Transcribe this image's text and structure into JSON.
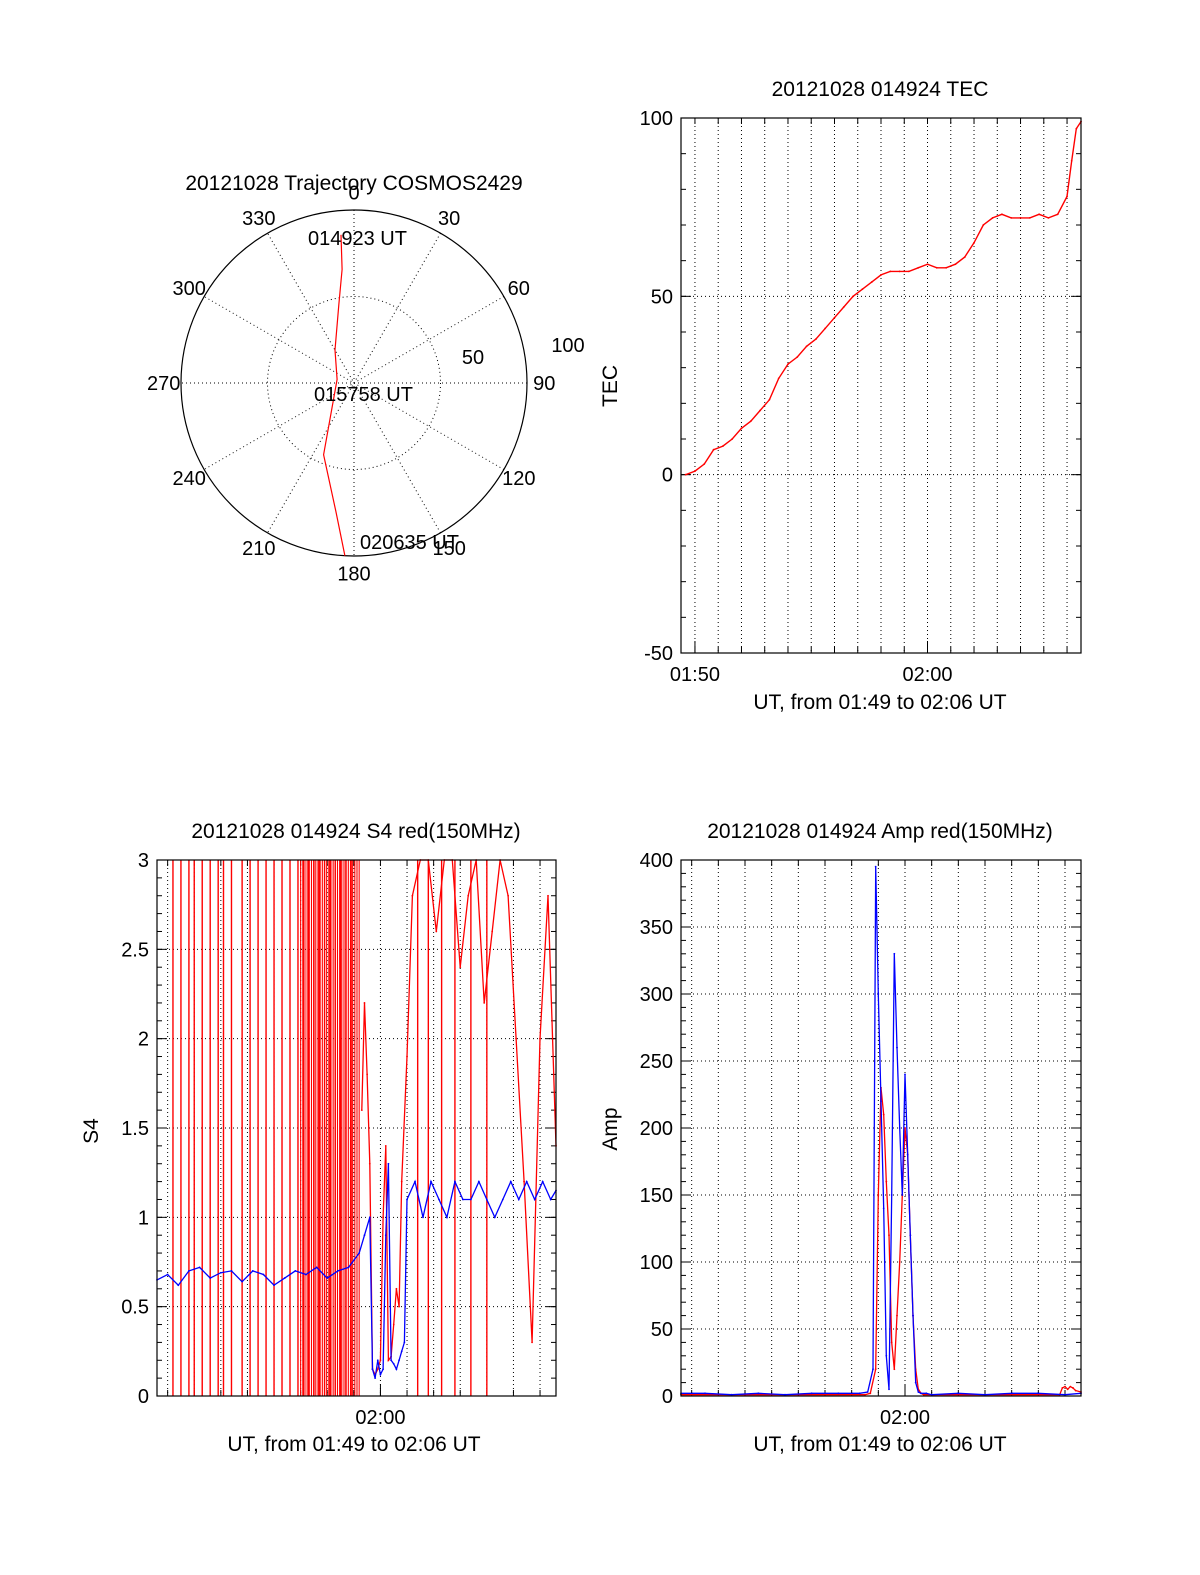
{
  "colors": {
    "red": "#ff0000",
    "blue": "#0000ff",
    "grid": "#000000"
  },
  "chart_data": [
    {
      "type": "polar",
      "title": "20121028 Trajectory COSMOS2429",
      "angle_labels": [
        "0",
        "30",
        "60",
        "90",
        "120",
        "150",
        "180",
        "210",
        "240",
        "270",
        "300",
        "330"
      ],
      "radial_labels": [
        "50",
        "100"
      ],
      "rlim": [
        0,
        100
      ],
      "trajectory": [
        {
          "azimuth": 355,
          "radius": 86
        },
        {
          "azimuth": 354,
          "radius": 66
        },
        {
          "azimuth": 349,
          "radius": 46
        },
        {
          "azimuth": 330,
          "radius": 22
        },
        {
          "azimuth": 282,
          "radius": 10
        },
        {
          "azimuth": 203,
          "radius": 45
        },
        {
          "azimuth": 188,
          "radius": 75
        },
        {
          "azimuth": 183,
          "radius": 100
        }
      ],
      "annotations": [
        "014923 UT",
        "015758 UT",
        "020635 UT"
      ],
      "series_color": "red"
    },
    {
      "type": "line",
      "title": "20121028 014924 TEC",
      "xlabel": "UT, from 01:49 to 02:06 UT",
      "ylabel": "TEC",
      "xlim": [
        109.4,
        126.6
      ],
      "ylim": [
        -50,
        100
      ],
      "x_tick_labels": [
        {
          "x": 110,
          "label": "01:50"
        },
        {
          "x": 120,
          "label": "02:00"
        }
      ],
      "y_ticks": [
        -50,
        0,
        50,
        100
      ],
      "series": [
        {
          "color": "red",
          "x": [
            109.6,
            110.0,
            110.4,
            110.8,
            111.2,
            111.6,
            112.0,
            112.4,
            112.8,
            113.2,
            113.6,
            114.0,
            114.4,
            114.8,
            115.2,
            115.6,
            116.0,
            116.4,
            116.8,
            117.2,
            117.6,
            118.0,
            118.4,
            118.8,
            119.2,
            119.6,
            120.0,
            120.4,
            120.8,
            121.2,
            121.6,
            122.0,
            122.4,
            122.8,
            123.2,
            123.6,
            124.0,
            124.4,
            124.8,
            125.2,
            125.6,
            126.0,
            126.2,
            126.4,
            126.6
          ],
          "y": [
            0,
            1,
            3,
            7,
            8,
            10,
            13,
            15,
            18,
            21,
            27,
            31,
            33,
            36,
            38,
            41,
            44,
            47,
            50,
            52,
            54,
            56,
            57,
            57,
            57,
            58,
            59,
            58,
            58,
            59,
            61,
            65,
            70,
            72,
            73,
            72,
            72,
            72,
            73,
            72,
            73,
            78,
            88,
            97,
            99
          ]
        }
      ]
    },
    {
      "type": "line",
      "title": "20121028 014924 S4 red(150MHz)",
      "xlabel": "UT, from 01:49 to 02:06 UT",
      "ylabel": "S4",
      "xlim": [
        111.6,
        126.6
      ],
      "ylim": [
        0,
        3
      ],
      "x_tick_labels": [
        {
          "x": 120,
          "label": "02:00"
        }
      ],
      "y_ticks": [
        0,
        0.5,
        1,
        1.5,
        2,
        2.5,
        3
      ],
      "y_tick_labels": [
        "0",
        "0.5",
        "1",
        "1.5",
        "2",
        "2.5",
        "3"
      ],
      "red_spikes_x": [
        112.2,
        112.5,
        112.8,
        113.0,
        113.3,
        113.6,
        113.9,
        114.1,
        114.4,
        114.8,
        115.1,
        115.4,
        115.7,
        116.0,
        116.3,
        116.6,
        116.9,
        117.1,
        117.3,
        117.5,
        117.7,
        117.9,
        118.1,
        118.3,
        118.5,
        118.7,
        118.9,
        121.4,
        121.8,
        122.3,
        122.8,
        123.4,
        124.0
      ],
      "red_dense_range": [
        117.0,
        119.2
      ],
      "series": [
        {
          "color": "red",
          "x": [
            119.3,
            119.4,
            119.5,
            119.6,
            119.7,
            119.8,
            119.9,
            120.0,
            120.1,
            120.2,
            120.3,
            120.4,
            120.5,
            120.6,
            120.7,
            120.8,
            121.0,
            121.2,
            121.5,
            121.8,
            122.1,
            122.4,
            122.7,
            123.0,
            123.3,
            123.6,
            123.9,
            124.2,
            124.5,
            124.8,
            125.1,
            125.4,
            125.7,
            126.0,
            126.3,
            126.6
          ],
          "y": [
            1.6,
            2.2,
            1.8,
            1.3,
            0.15,
            0.12,
            0.15,
            0.2,
            1.0,
            1.4,
            0.2,
            0.22,
            0.4,
            0.6,
            0.5,
            1.2,
            1.9,
            2.8,
            3.0,
            3.0,
            2.6,
            3.0,
            3.0,
            2.4,
            2.8,
            3.0,
            2.2,
            2.6,
            3.0,
            2.8,
            2.0,
            1.2,
            0.3,
            2.0,
            2.8,
            1.4
          ]
        },
        {
          "color": "blue",
          "x": [
            111.6,
            112.0,
            112.4,
            112.8,
            113.2,
            113.6,
            114.0,
            114.4,
            114.8,
            115.2,
            115.6,
            116.0,
            116.4,
            116.8,
            117.2,
            117.6,
            118.0,
            118.4,
            118.8,
            119.2,
            119.4,
            119.6,
            119.7,
            119.8,
            119.9,
            120.0,
            120.1,
            120.2,
            120.3,
            120.4,
            120.5,
            120.6,
            120.7,
            120.8,
            120.9,
            121.0,
            121.3,
            121.6,
            121.9,
            122.2,
            122.5,
            122.8,
            123.1,
            123.4,
            123.7,
            124.0,
            124.3,
            124.6,
            124.9,
            125.2,
            125.5,
            125.8,
            126.1,
            126.4,
            126.6
          ],
          "y": [
            0.65,
            0.68,
            0.62,
            0.7,
            0.72,
            0.66,
            0.69,
            0.7,
            0.64,
            0.7,
            0.68,
            0.62,
            0.66,
            0.7,
            0.68,
            0.72,
            0.66,
            0.7,
            0.72,
            0.8,
            0.9,
            1.0,
            0.15,
            0.1,
            0.2,
            0.12,
            0.15,
            0.9,
            1.3,
            0.2,
            0.18,
            0.15,
            0.2,
            0.25,
            0.3,
            1.1,
            1.2,
            1.0,
            1.2,
            1.1,
            1.0,
            1.2,
            1.1,
            1.1,
            1.2,
            1.1,
            1.0,
            1.1,
            1.2,
            1.1,
            1.2,
            1.1,
            1.2,
            1.1,
            1.15
          ]
        }
      ]
    },
    {
      "type": "line",
      "title": "20121028 014924 Amp red(150MHz)",
      "xlabel": "UT, from 01:49 to 02:06 UT",
      "ylabel": "Amp",
      "xlim": [
        111.6,
        126.6
      ],
      "ylim": [
        0,
        400
      ],
      "x_tick_labels": [
        {
          "x": 120,
          "label": "02:00"
        }
      ],
      "y_ticks": [
        0,
        50,
        100,
        150,
        200,
        250,
        300,
        350,
        400
      ],
      "series": [
        {
          "color": "red",
          "x": [
            111.6,
            118.5,
            118.7,
            118.9,
            119.0,
            119.1,
            119.2,
            119.3,
            119.4,
            119.5,
            119.6,
            119.7,
            119.8,
            119.9,
            120.0,
            120.1,
            120.2,
            120.3,
            120.4,
            120.5,
            120.6,
            120.7,
            125.8,
            125.9,
            126.0,
            126.1,
            126.2,
            126.3,
            126.4,
            126.6
          ],
          "y": [
            1,
            1,
            2,
            20,
            150,
            230,
            210,
            160,
            120,
            40,
            20,
            60,
            100,
            150,
            200,
            180,
            120,
            60,
            20,
            5,
            2,
            1,
            1,
            6,
            7,
            5,
            7,
            6,
            4,
            3
          ]
        },
        {
          "color": "blue",
          "x": [
            111.6,
            112.5,
            113.5,
            114.5,
            115.5,
            116.5,
            117.5,
            118.3,
            118.6,
            118.8,
            118.9,
            119.0,
            119.1,
            119.2,
            119.3,
            119.4,
            119.5,
            119.6,
            119.7,
            119.8,
            119.9,
            120.0,
            120.1,
            120.2,
            120.3,
            120.4,
            120.5,
            120.6,
            120.8,
            121.0,
            122.0,
            123.0,
            124.0,
            125.0,
            126.0,
            126.6
          ],
          "y": [
            2,
            2,
            1,
            2,
            1,
            2,
            2,
            2,
            3,
            20,
            395,
            300,
            220,
            140,
            30,
            5,
            150,
            330,
            260,
            200,
            150,
            240,
            180,
            120,
            60,
            10,
            3,
            2,
            2,
            1,
            2,
            1,
            2,
            2,
            1,
            2
          ]
        }
      ]
    }
  ]
}
